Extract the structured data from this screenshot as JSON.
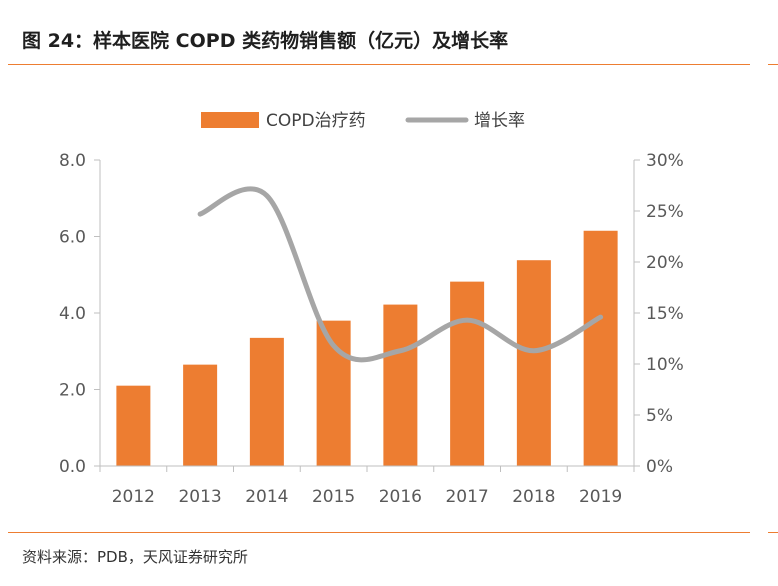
{
  "header": {
    "title": "图 24：样本医院 COPD 类药物销售额（亿元）及增长率"
  },
  "footer": {
    "source": "资料来源：PDB，天风证券研究所"
  },
  "colors": {
    "bar": "#ed7d31",
    "line": "#a6a6a6",
    "axis": "#bfbfbf",
    "rule": "#ed7d31"
  },
  "chart_data": {
    "type": "bar",
    "categories": [
      "2012",
      "2013",
      "2014",
      "2015",
      "2016",
      "2017",
      "2018",
      "2019"
    ],
    "series": [
      {
        "name": "COPD治疗药",
        "type": "bar",
        "axis": "left",
        "values": [
          2.1,
          2.65,
          3.35,
          3.8,
          4.22,
          4.82,
          5.38,
          6.15
        ]
      },
      {
        "name": "增长率",
        "type": "line",
        "axis": "right",
        "values": [
          null,
          24.7,
          26.5,
          11.8,
          11.3,
          14.3,
          11.3,
          14.6
        ]
      }
    ],
    "y_left": {
      "min": 0,
      "max": 8,
      "ticks": [
        "0.0",
        "2.0",
        "4.0",
        "6.0",
        "8.0"
      ]
    },
    "y_right": {
      "min": 0,
      "max": 30,
      "ticks": [
        "0%",
        "5%",
        "10%",
        "15%",
        "20%",
        "25%",
        "30%"
      ]
    },
    "legend_position": "top-center",
    "grid": false
  }
}
